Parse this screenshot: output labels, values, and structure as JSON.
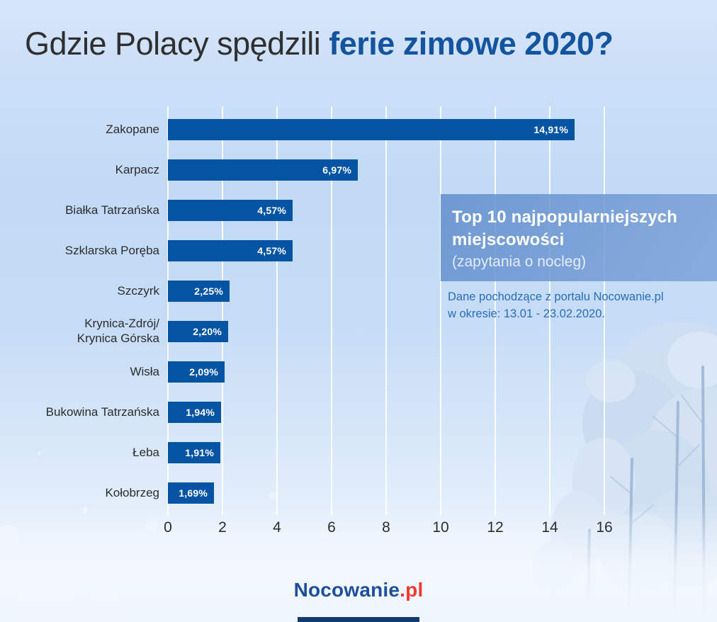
{
  "title": {
    "prefix": "Gdzie Polacy spędzili ",
    "highlight": "ferie zimowe 2020?"
  },
  "chart_data": {
    "type": "bar",
    "orientation": "horizontal",
    "title": "Top 10 najpopularniejszych miejscowości (zapytania o nocleg)",
    "categories": [
      "Zakopane",
      "Karpacz",
      "Białka Tatrzańska",
      "Szklarska Poręba",
      "Szczyrk",
      "Krynica-Zdrój/\nKrynica Górska",
      "Wisła",
      "Bukowina Tatrzańska",
      "Łeba",
      "Kołobrzeg"
    ],
    "values": [
      14.91,
      6.97,
      4.57,
      4.57,
      2.25,
      2.2,
      2.09,
      1.94,
      1.91,
      1.69
    ],
    "value_labels": [
      "14,91%",
      "6,97%",
      "4,57%",
      "4,57%",
      "2,25%",
      "2,20%",
      "2,09%",
      "1,94%",
      "1,91%",
      "1,69%"
    ],
    "unit": "%",
    "xlim": [
      0,
      16
    ],
    "x_ticks": [
      0,
      2,
      4,
      6,
      8,
      10,
      12,
      14,
      16
    ],
    "grid": true,
    "bar_color": "#0553a3"
  },
  "info_box": {
    "title_line1": "Top 10 najpopularniejszych",
    "title_line2": "miejscowości",
    "subtitle": "(zapytania o nocleg)"
  },
  "source_note": {
    "line1": "Dane pochodzące z portalu Nocowanie.pl",
    "line2": "w okresie: 13.01 - 23.02.2020."
  },
  "footer_logo": {
    "brand": "Nocowanie",
    "tld": ".pl"
  },
  "colors": {
    "bar": "#0553a3",
    "title_highlight": "#14549e",
    "info_box_bg": "#6490ce",
    "source_text": "#2a6db6",
    "logo_brand": "#1d4f9c",
    "logo_tld": "#ee3b30",
    "gridline": "#ffffff"
  }
}
